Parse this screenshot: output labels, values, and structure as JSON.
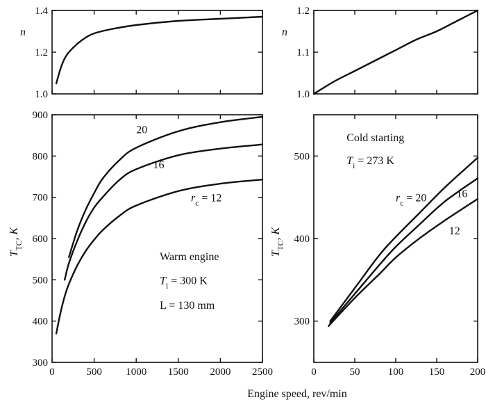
{
  "figure": {
    "shared_xlabel": "Engine speed, rev/min"
  },
  "chart_data": [
    {
      "id": "top_left",
      "type": "line",
      "xlabel": "",
      "ylabel": "n",
      "xlim": [
        0,
        2500
      ],
      "ylim": [
        1.0,
        1.4
      ],
      "xticks": [
        0,
        500,
        1000,
        1500,
        2000,
        2500
      ],
      "show_xtick_labels": false,
      "yticks": [
        1.0,
        1.2,
        1.4
      ],
      "ytick_labels": [
        "1.0",
        "1.2",
        "1.4"
      ],
      "series": [
        {
          "x": [
            50,
            100,
            150,
            200,
            300,
            400,
            500,
            700,
            1000,
            1500,
            2000,
            2500
          ],
          "y": [
            1.05,
            1.12,
            1.17,
            1.2,
            1.24,
            1.27,
            1.29,
            1.31,
            1.33,
            1.35,
            1.36,
            1.37
          ]
        }
      ],
      "annotations": []
    },
    {
      "id": "top_right",
      "type": "line",
      "xlabel": "",
      "ylabel": "n",
      "xlim": [
        0,
        200
      ],
      "ylim": [
        1.0,
        1.2
      ],
      "xticks": [
        0,
        50,
        100,
        150,
        200
      ],
      "show_xtick_labels": false,
      "yticks": [
        1.0,
        1.1,
        1.2
      ],
      "ytick_labels": [
        "1.0",
        "1.1",
        "1.2"
      ],
      "series": [
        {
          "x": [
            0,
            25,
            50,
            75,
            100,
            125,
            150,
            175,
            200
          ],
          "y": [
            1.0,
            1.03,
            1.055,
            1.08,
            1.105,
            1.13,
            1.15,
            1.175,
            1.2
          ]
        }
      ],
      "annotations": []
    },
    {
      "id": "bottom_left",
      "type": "line",
      "xlabel": "",
      "ylabel": "T_TC, K",
      "xlim": [
        0,
        2500
      ],
      "ylim": [
        300,
        900
      ],
      "xticks": [
        0,
        500,
        1000,
        1500,
        2000,
        2500
      ],
      "xtick_labels": [
        "0",
        "500",
        "1000",
        "1500",
        "2000",
        "2500"
      ],
      "show_xtick_labels": true,
      "yticks": [
        300,
        400,
        500,
        600,
        700,
        800,
        900
      ],
      "ytick_labels": [
        "300",
        "400",
        "500",
        "600",
        "700",
        "800",
        "900"
      ],
      "series": [
        {
          "name": "20",
          "x": [
            200,
            300,
            400,
            500,
            600,
            800,
            1000,
            1500,
            2000,
            2500
          ],
          "y": [
            555,
            620,
            670,
            710,
            745,
            790,
            820,
            860,
            882,
            895
          ]
        },
        {
          "name": "16",
          "x": [
            150,
            200,
            300,
            400,
            500,
            600,
            800,
            1000,
            1500,
            2000,
            2500
          ],
          "y": [
            500,
            540,
            595,
            640,
            675,
            700,
            742,
            768,
            802,
            818,
            828
          ]
        },
        {
          "name": "r_c = 12",
          "x": [
            50,
            100,
            150,
            200,
            300,
            400,
            500,
            600,
            800,
            1000,
            1500,
            2000,
            2500
          ],
          "y": [
            370,
            420,
            460,
            490,
            535,
            570,
            597,
            620,
            655,
            680,
            715,
            733,
            743
          ]
        }
      ],
      "annotations": [
        {
          "text": "20",
          "x": 1000,
          "y": 855
        },
        {
          "text": "16",
          "x": 1200,
          "y": 770
        },
        {
          "text": "r_c = 12",
          "x": 1650,
          "y": 690
        },
        {
          "text": "Warm engine",
          "x": 1280,
          "y": 548
        },
        {
          "text": "T_i = 300 K",
          "x": 1280,
          "y": 490
        },
        {
          "text": "L = 130 mm",
          "x": 1280,
          "y": 430
        }
      ]
    },
    {
      "id": "bottom_right",
      "type": "line",
      "xlabel": "",
      "ylabel": "T_TC, K",
      "xlim": [
        0,
        200
      ],
      "ylim": [
        250,
        550
      ],
      "xticks": [
        0,
        50,
        100,
        150,
        200
      ],
      "xtick_labels": [
        "0",
        "50",
        "100",
        "150",
        "200"
      ],
      "show_xtick_labels": true,
      "yticks": [
        300,
        400,
        500
      ],
      "ytick_labels": [
        "300",
        "400",
        "500"
      ],
      "series": [
        {
          "name": "r_c = 20",
          "x": [
            20,
            50,
            80,
            100,
            130,
            160,
            200
          ],
          "y": [
            300,
            340,
            380,
            402,
            432,
            462,
            498
          ]
        },
        {
          "name": "16",
          "x": [
            20,
            50,
            80,
            100,
            130,
            160,
            200
          ],
          "y": [
            298,
            333,
            368,
            390,
            418,
            445,
            473
          ]
        },
        {
          "name": "12",
          "x": [
            18,
            50,
            80,
            100,
            130,
            160,
            200
          ],
          "y": [
            294,
            328,
            357,
            377,
            401,
            422,
            448
          ]
        }
      ],
      "annotations": [
        {
          "text": "Cold starting",
          "x": 40,
          "y": 518
        },
        {
          "text": "T_i = 273 K",
          "x": 40,
          "y": 490
        },
        {
          "text": "r_c = 20",
          "x": 100,
          "y": 445
        },
        {
          "text": "16",
          "x": 174,
          "y": 450
        },
        {
          "text": "12",
          "x": 165,
          "y": 405
        }
      ]
    }
  ]
}
